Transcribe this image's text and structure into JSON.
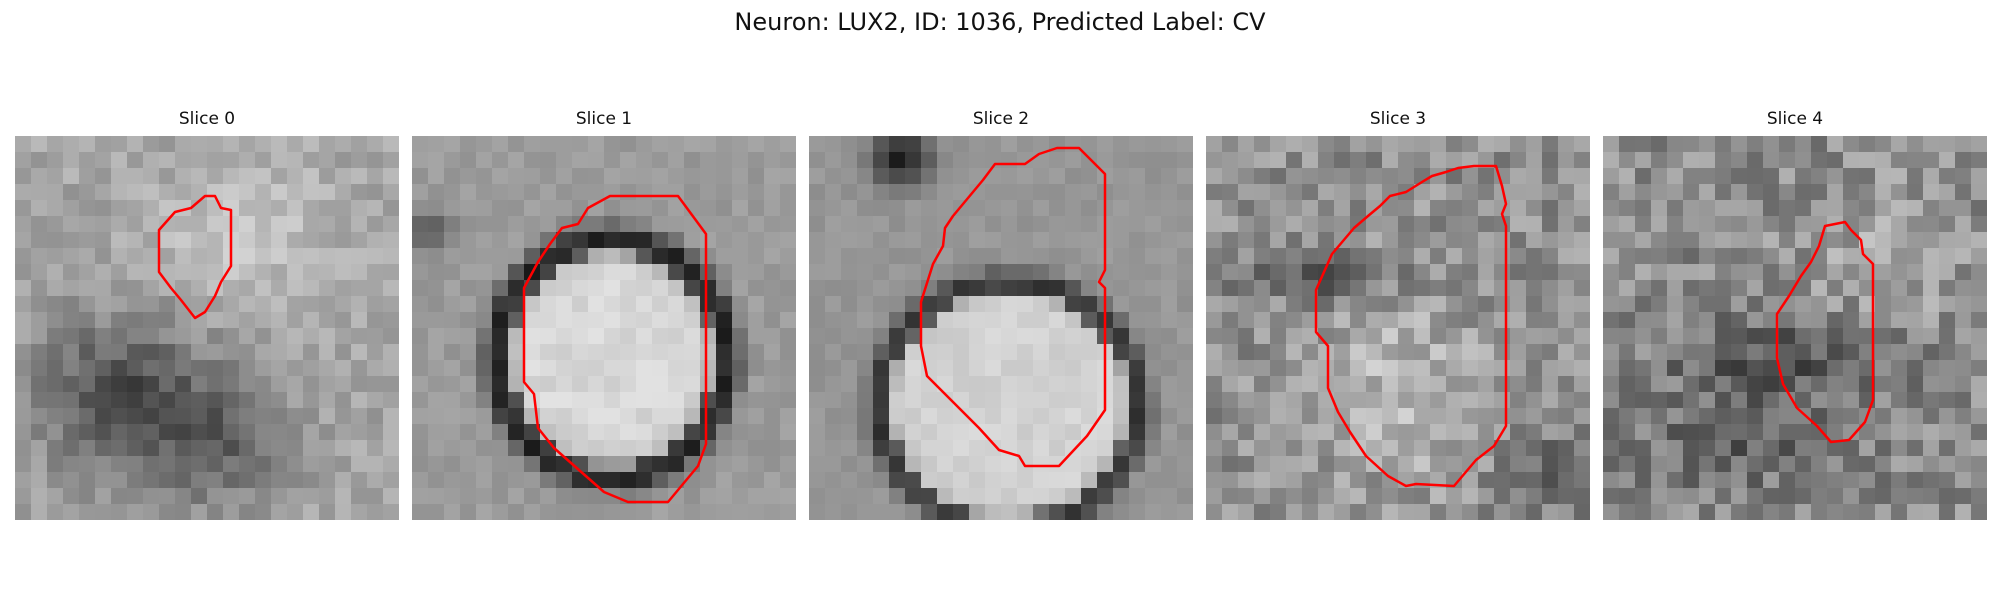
{
  "figure": {
    "title": "Neuron: LUX2, ID: 1036, Predicted Label: CV"
  },
  "panels": [
    {
      "title": "Slice 0",
      "colormap": "gray",
      "contour_color": "#ff0000"
    },
    {
      "title": "Slice 1",
      "colormap": "gray",
      "contour_color": "#ff0000"
    },
    {
      "title": "Slice 2",
      "colormap": "gray",
      "contour_color": "#ff0000"
    },
    {
      "title": "Slice 3",
      "colormap": "gray",
      "contour_color": "#ff0000"
    },
    {
      "title": "Slice 4",
      "colormap": "gray",
      "contour_color": "#ff0000"
    }
  ]
}
